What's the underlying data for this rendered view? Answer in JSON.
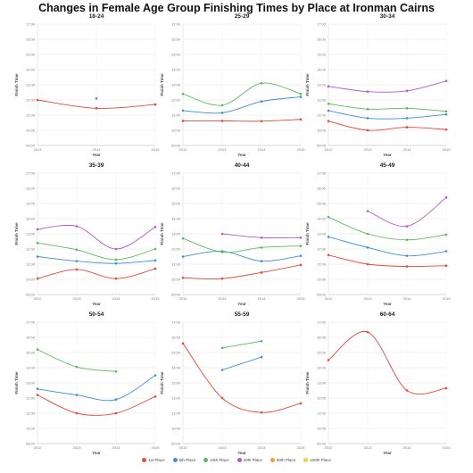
{
  "title": "Changes in Female Age Group Finishing Times by Place at Ironman Cairns",
  "legend": [
    {
      "label": "1st Place",
      "color": "#e8483b"
    },
    {
      "label": "5th Place",
      "color": "#3d8fd6"
    },
    {
      "label": "10th Place",
      "color": "#5cb85c"
    },
    {
      "label": "20th Place",
      "color": "#b05cc6"
    },
    {
      "label": "50th Place",
      "color": "#f0a030"
    },
    {
      "label": "100th Place",
      "color": "#f0d040"
    }
  ],
  "chart_data": [
    {
      "type": "line",
      "title": "18-24",
      "xlabel": "Year",
      "ylabel": "Finish Time",
      "x": [
        2013,
        2014,
        2015
      ],
      "ylim": [
        9,
        17
      ],
      "yticks": [
        "09:00",
        "10:00",
        "11:00",
        "12:00",
        "13:00",
        "14:00",
        "15:00",
        "16:00",
        "17:00"
      ],
      "series": [
        {
          "name": "1st Place",
          "values": [
            12.0,
            11.45,
            11.7
          ]
        },
        {
          "name": "5th Place",
          "values": [
            null,
            12.1,
            null
          ]
        }
      ]
    },
    {
      "type": "line",
      "title": "25-29",
      "xlabel": "Year",
      "ylabel": "Finish Time",
      "x": [
        2012,
        2013,
        2014,
        2015
      ],
      "ylim": [
        9,
        17
      ],
      "yticks": [
        "09:00",
        "10:00",
        "11:00",
        "12:00",
        "13:00",
        "14:00",
        "15:00",
        "16:00",
        "17:00"
      ],
      "series": [
        {
          "name": "1st Place",
          "values": [
            10.62,
            10.62,
            10.6,
            10.72
          ]
        },
        {
          "name": "5th Place",
          "values": [
            11.3,
            11.15,
            11.9,
            12.2
          ]
        },
        {
          "name": "10th Place",
          "values": [
            12.4,
            11.65,
            13.1,
            12.4
          ]
        }
      ]
    },
    {
      "type": "line",
      "title": "30-34",
      "xlabel": "Year",
      "ylabel": "Finish Time",
      "x": [
        2012,
        2013,
        2014,
        2015
      ],
      "ylim": [
        9,
        17
      ],
      "yticks": [
        "09:00",
        "10:00",
        "11:00",
        "12:00",
        "13:00",
        "14:00",
        "15:00",
        "16:00",
        "17:00"
      ],
      "series": [
        {
          "name": "1st Place",
          "values": [
            10.6,
            10.0,
            10.2,
            10.05
          ]
        },
        {
          "name": "5th Place",
          "values": [
            11.3,
            10.8,
            10.8,
            11.05
          ]
        },
        {
          "name": "10th Place",
          "values": [
            11.75,
            11.4,
            11.45,
            11.25
          ]
        },
        {
          "name": "20th Place",
          "values": [
            12.9,
            12.55,
            12.6,
            13.25
          ]
        }
      ]
    },
    {
      "type": "line",
      "title": "35-39",
      "xlabel": "Year",
      "ylabel": "Finish Time",
      "x": [
        2012,
        2013,
        2014,
        2015
      ],
      "ylim": [
        9,
        17
      ],
      "yticks": [
        "09:00",
        "10:00",
        "11:00",
        "12:00",
        "13:00",
        "14:00",
        "15:00",
        "16:00",
        "17:00"
      ],
      "series": [
        {
          "name": "1st Place",
          "values": [
            10.05,
            10.65,
            10.05,
            10.7
          ]
        },
        {
          "name": "5th Place",
          "values": [
            11.5,
            11.2,
            11.05,
            11.25
          ]
        },
        {
          "name": "10th Place",
          "values": [
            12.4,
            11.95,
            11.3,
            12.0
          ]
        },
        {
          "name": "20th Place",
          "values": [
            13.3,
            13.5,
            12.0,
            13.45
          ]
        }
      ]
    },
    {
      "type": "line",
      "title": "40-44",
      "xlabel": "Year",
      "ylabel": "Finish Time",
      "x": [
        2012,
        2013,
        2014,
        2015
      ],
      "ylim": [
        9,
        17
      ],
      "yticks": [
        "09:00",
        "10:00",
        "11:00",
        "12:00",
        "13:00",
        "14:00",
        "15:00",
        "16:00",
        "17:00"
      ],
      "series": [
        {
          "name": "1st Place",
          "values": [
            10.1,
            10.05,
            10.45,
            10.95
          ]
        },
        {
          "name": "5th Place",
          "values": [
            11.5,
            11.85,
            11.2,
            11.55
          ]
        },
        {
          "name": "10th Place",
          "values": [
            12.7,
            11.8,
            12.1,
            12.2
          ]
        },
        {
          "name": "20th Place",
          "values": [
            null,
            13.0,
            12.75,
            12.75
          ]
        }
      ]
    },
    {
      "type": "line",
      "title": "45-49",
      "xlabel": "Year",
      "ylabel": "Finish Time",
      "x": [
        2012,
        2013,
        2014,
        2015
      ],
      "ylim": [
        9,
        17
      ],
      "yticks": [
        "09:00",
        "10:00",
        "11:00",
        "12:00",
        "13:00",
        "14:00",
        "15:00",
        "16:00",
        "17:00"
      ],
      "series": [
        {
          "name": "1st Place",
          "values": [
            11.6,
            11.0,
            10.85,
            10.9
          ]
        },
        {
          "name": "5th Place",
          "values": [
            12.8,
            12.1,
            11.55,
            11.85
          ]
        },
        {
          "name": "10th Place",
          "values": [
            14.1,
            13.0,
            12.6,
            12.95
          ]
        },
        {
          "name": "20th Place",
          "values": [
            null,
            14.5,
            13.5,
            15.4
          ]
        }
      ]
    },
    {
      "type": "line",
      "title": "50-54",
      "xlabel": "Year",
      "ylabel": "Finish Time",
      "x": [
        2012,
        2013,
        2014,
        2015
      ],
      "ylim": [
        9,
        17
      ],
      "yticks": [
        "09:00",
        "10:00",
        "11:00",
        "12:00",
        "13:00",
        "14:00",
        "15:00",
        "16:00",
        "17:00"
      ],
      "series": [
        {
          "name": "1st Place",
          "values": [
            12.2,
            11.0,
            11.0,
            12.1
          ]
        },
        {
          "name": "5th Place",
          "values": [
            12.6,
            12.2,
            11.9,
            13.5
          ]
        },
        {
          "name": "10th Place",
          "values": [
            15.2,
            14.05,
            13.75,
            null
          ]
        }
      ]
    },
    {
      "type": "line",
      "title": "55-59",
      "xlabel": "Year",
      "ylabel": "Finish Time",
      "x": [
        2012,
        2013,
        2014,
        2015
      ],
      "ylim": [
        9,
        17
      ],
      "yticks": [
        "09:00",
        "10:00",
        "11:00",
        "12:00",
        "13:00",
        "14:00",
        "15:00",
        "16:00",
        "17:00"
      ],
      "series": [
        {
          "name": "1st Place",
          "values": [
            15.6,
            12.0,
            11.05,
            11.65
          ]
        },
        {
          "name": "5th Place",
          "values": [
            null,
            13.85,
            14.7,
            null
          ]
        },
        {
          "name": "10th Place",
          "values": [
            null,
            15.3,
            15.75,
            null
          ]
        }
      ]
    },
    {
      "type": "line",
      "title": "60-64",
      "xlabel": "Year",
      "ylabel": "Finish Time",
      "x": [
        2012,
        2013,
        2014,
        2015
      ],
      "ylim": [
        9,
        17
      ],
      "yticks": [
        "09:00",
        "10:00",
        "11:00",
        "12:00",
        "13:00",
        "14:00",
        "15:00",
        "16:00",
        "17:00"
      ],
      "series": [
        {
          "name": "1st Place",
          "values": [
            14.5,
            16.35,
            12.5,
            12.65
          ]
        }
      ]
    }
  ]
}
